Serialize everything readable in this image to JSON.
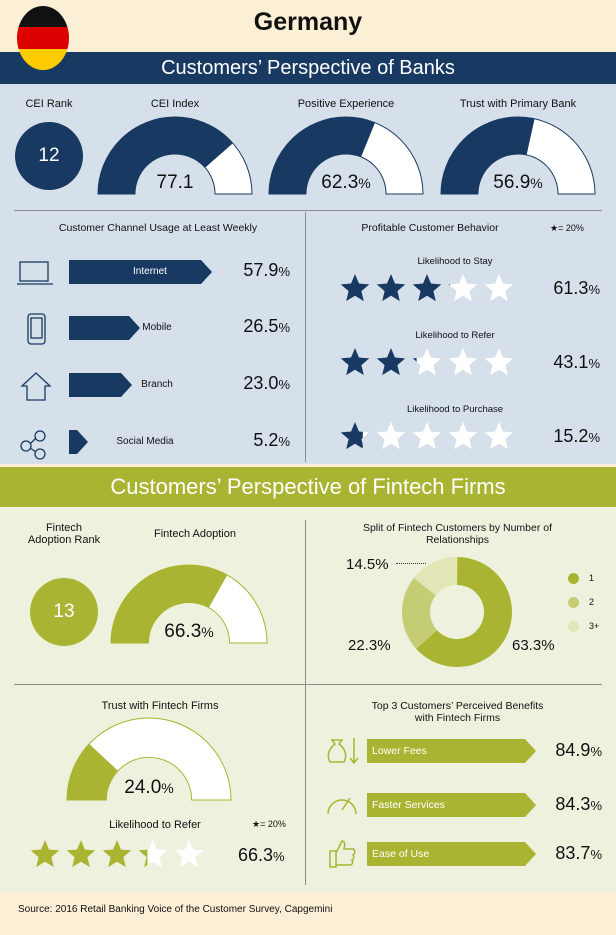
{
  "header": {
    "country": "Germany"
  },
  "banks": {
    "banner": "Customers’ Perspective of Banks",
    "cei_rank": {
      "label": "CEI Rank",
      "value": "12"
    },
    "cei_index": {
      "label": "CEI Index",
      "value": "77.1",
      "fill": 0.771
    },
    "positive_experience": {
      "label": "Positive Experience",
      "value": "62.3",
      "unit": "%",
      "fill": 0.623
    },
    "trust_primary": {
      "label": "Trust with Primary Bank",
      "value": "56.9",
      "unit": "%",
      "fill": 0.569
    },
    "channel_usage": {
      "title": "Customer Channel Usage at Least Weekly",
      "items": [
        {
          "label": "Internet",
          "value": "57.9",
          "unit": "%",
          "icon": "laptop-icon",
          "fraction": 0.579
        },
        {
          "label": "Mobile",
          "value": "26.5",
          "unit": "%",
          "icon": "phone-icon",
          "fraction": 0.265
        },
        {
          "label": "Branch",
          "value": "23.0",
          "unit": "%",
          "icon": "house-icon",
          "fraction": 0.23
        },
        {
          "label": "Social Media",
          "value": "5.2",
          "unit": "%",
          "icon": "network-icon",
          "fraction": 0.052
        }
      ]
    },
    "behavior": {
      "title": "Profitable Customer Behavior",
      "legend": "★= 20%",
      "items": [
        {
          "label": "Likelihood to Stay",
          "value": "61.3",
          "unit": "%",
          "stars": 3.065
        },
        {
          "label": "Likelihood to Refer",
          "value": "43.1",
          "unit": "%",
          "stars": 2.155
        },
        {
          "label": "Likelihood to Purchase",
          "value": "15.2",
          "unit": "%",
          "stars": 0.76
        }
      ]
    }
  },
  "fintech": {
    "banner": "Customers’ Perspective of Fintech Firms",
    "adoption_rank": {
      "label_line1": "Fintech",
      "label_line2": "Adoption Rank",
      "value": "13"
    },
    "adoption": {
      "label": "Fintech Adoption",
      "value": "66.3",
      "unit": "%",
      "fill": 0.663
    },
    "split": {
      "title_line1": "Split of Fintech Customers by Number of",
      "title_line2": "Relationships",
      "segments": [
        {
          "label": "1",
          "value": "63.3",
          "unit": "%",
          "color": "#a9b532",
          "fraction": 0.633
        },
        {
          "label": "2",
          "value": "22.3",
          "unit": "%",
          "color": "#c5cd74",
          "fraction": 0.223
        },
        {
          "label": "3+",
          "value": "14.5",
          "unit": "%",
          "color": "#e2e5b5",
          "fraction": 0.145
        }
      ]
    },
    "trust": {
      "label": "Trust with Fintech Firms",
      "value": "24.0",
      "unit": "%",
      "fill": 0.24
    },
    "refer": {
      "label": "Likelihood to Refer",
      "value": "66.3",
      "unit": "%",
      "stars": 3.315,
      "legend": "★= 20%"
    },
    "benefits": {
      "title_line1": "Top 3 Customers’ Perceived Benefits",
      "title_line2": "with Fintech Firms",
      "items": [
        {
          "label": "Lower Fees",
          "value": "84.9",
          "unit": "%",
          "icon": "money-bag-icon"
        },
        {
          "label": "Faster Services",
          "value": "84.3",
          "unit": "%",
          "icon": "speedometer-icon"
        },
        {
          "label": "Ease of Use",
          "value": "83.7",
          "unit": "%",
          "icon": "thumbs-up-icon"
        }
      ]
    }
  },
  "colors": {
    "navy": "#183a62",
    "olive": "#a9b532",
    "blue_panel": "#d5e0ea",
    "green_panel": "#eff1df",
    "cream": "#fbf0d6"
  },
  "source": "Source: 2016 Retail Banking Voice of the Customer Survey, Capgemini"
}
